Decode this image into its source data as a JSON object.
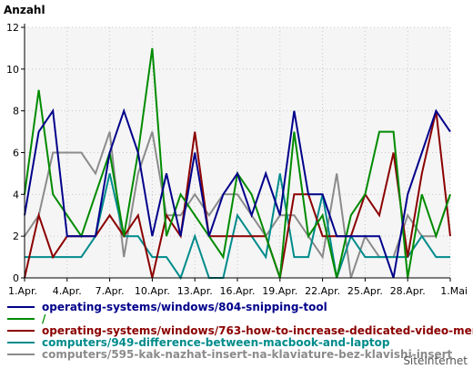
{
  "chart_data": {
    "type": "line",
    "ylabel": "Anzahl",
    "ylim": [
      0,
      12
    ],
    "yticks": [
      0,
      2,
      4,
      6,
      8,
      10,
      12
    ],
    "x": [
      "1.Apr.",
      "2.Apr.",
      "3.Apr.",
      "4.Apr.",
      "5.Apr.",
      "6.Apr.",
      "7.Apr.",
      "8.Apr.",
      "9.Apr.",
      "10.Apr.",
      "11.Apr.",
      "12.Apr.",
      "13.Apr.",
      "14.Apr.",
      "15.Apr.",
      "16.Apr.",
      "17.Apr.",
      "18.Apr.",
      "19.Apr.",
      "20.Apr.",
      "21.Apr.",
      "22.Apr.",
      "23.Apr.",
      "24.Apr.",
      "25.Apr.",
      "26.Apr.",
      "27.Apr.",
      "28.Apr.",
      "29.Apr.",
      "30.Apr.",
      "1.Mai"
    ],
    "xtick_labels": [
      "1.Apr.",
      "4.Apr.",
      "7.Apr.",
      "10.Apr.",
      "13.Apr.",
      "16.Apr.",
      "19.Apr.",
      "22.Apr.",
      "25.Apr.",
      "28.Apr.",
      "1.Mai"
    ],
    "grid": true,
    "legend_position": "bottom",
    "series": [
      {
        "name": "operating-systems/windows/804-snipping-tool",
        "color": "#00008b",
        "values": [
          3,
          7,
          8,
          2,
          2,
          2,
          6,
          8,
          6,
          2,
          5,
          2,
          6,
          2,
          4,
          5,
          3,
          5,
          3,
          8,
          4,
          4,
          2,
          2,
          2,
          2,
          0,
          4,
          6,
          8,
          7
        ]
      },
      {
        "name": "/",
        "color": "#008b00",
        "values": [
          4,
          9,
          4,
          3,
          2,
          4,
          6,
          2,
          6,
          11,
          2,
          4,
          3,
          2,
          1,
          5,
          4,
          2,
          0,
          7,
          2,
          3,
          0,
          3,
          4,
          7,
          7,
          0,
          4,
          2,
          4
        ]
      },
      {
        "name": "operating-systems/windows/763-how-to-increase-dedicated-video-memory",
        "color": "#8b0000",
        "values": [
          0,
          3,
          1,
          2,
          2,
          2,
          3,
          2,
          3,
          0,
          3,
          2,
          7,
          2,
          2,
          2,
          2,
          2,
          0,
          4,
          4,
          2,
          2,
          2,
          4,
          3,
          6,
          1,
          5,
          8,
          2
        ]
      },
      {
        "name": "computers/949-difference-between-macbook-and-laptop",
        "color": "#008b8b",
        "values": [
          1,
          1,
          1,
          1,
          1,
          2,
          5,
          2,
          2,
          1,
          1,
          0,
          2,
          0,
          0,
          3,
          2,
          1,
          5,
          1,
          1,
          4,
          0,
          2,
          1,
          1,
          1,
          1,
          2,
          1,
          1
        ]
      },
      {
        "name": "computers/595-kak-nazhat-insert-na-klaviature-bez-klavishi-insert",
        "color": "#8b8b8b",
        "values": [
          2,
          3,
          6,
          6,
          6,
          5,
          7,
          1,
          5,
          7,
          3,
          3,
          4,
          3,
          4,
          4,
          3,
          2,
          3,
          3,
          2,
          1,
          5,
          0,
          2,
          1,
          1,
          3,
          2,
          2,
          4
        ]
      }
    ]
  },
  "watermark": "SiteInternet"
}
